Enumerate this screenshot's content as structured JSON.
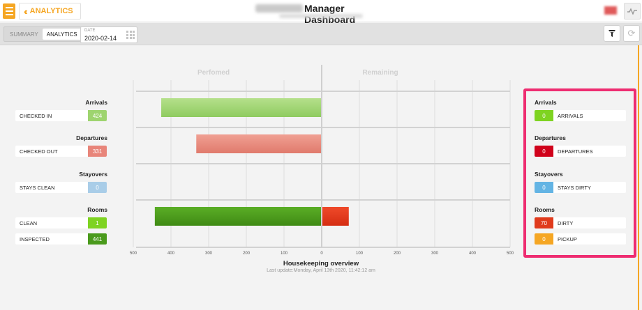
{
  "header": {
    "back_label": "ANALYTICS",
    "title": "Manager Dashboard"
  },
  "subbar": {
    "tabs": [
      {
        "label": "SUMMARY",
        "active": false
      },
      {
        "label": "ANALYTICS",
        "active": true
      }
    ],
    "date_label": "DATE",
    "date_value": "2020-02-14"
  },
  "left": {
    "arrivals_head": "Arrivals",
    "checked_in": {
      "label": "CHECKED IN",
      "value": "424"
    },
    "departures_head": "Departures",
    "checked_out": {
      "label": "CHECKED OUT",
      "value": "331"
    },
    "stayovers_head": "Stayovers",
    "stays_clean": {
      "label": "STAYS CLEAN",
      "value": "0"
    },
    "rooms_head": "Rooms",
    "clean": {
      "label": "CLEAN",
      "value": "1"
    },
    "inspected": {
      "label": "INSPECTED",
      "value": "441"
    }
  },
  "right": {
    "arrivals_head": "Arrivals",
    "arrivals": {
      "label": "ARRIVALS",
      "value": "0"
    },
    "departures_head": "Departures",
    "departures": {
      "label": "DEPARTURES",
      "value": "0"
    },
    "stayovers_head": "Stayovers",
    "stays_dirty": {
      "label": "STAYS DIRTY",
      "value": "0"
    },
    "rooms_head": "Rooms",
    "dirty": {
      "label": "DIRTY",
      "value": "70"
    },
    "pickup": {
      "label": "PICKUP",
      "value": "0"
    }
  },
  "colors": {
    "green_light": "#9ed46f",
    "red_light": "#e8857a",
    "green_dark": "#4a9a1c",
    "red_dark": "#e03a1c",
    "blue_light": "#a9cde8",
    "green_bright": "#7ed321",
    "red_bright": "#d0021b",
    "blue_bright": "#63b4e4",
    "orange": "#f5a623",
    "highlight": "#ee2d71"
  },
  "chart_data": {
    "type": "bar",
    "title": "Housekeeping overview",
    "subtitle": "Last update:Monday, April 13th 2020, 11:42:12 am",
    "column_labels": [
      "Perfomed",
      "Remaining"
    ],
    "categories": [
      "Arrivals",
      "Departures",
      "Stayovers",
      "Rooms"
    ],
    "series": [
      {
        "name": "Perfomed",
        "values": [
          424,
          331,
          0,
          441
        ]
      },
      {
        "name": "Remaining",
        "values": [
          0,
          0,
          0,
          70
        ]
      }
    ],
    "xlim": [
      -500,
      500
    ],
    "x_ticks": [
      -500,
      -400,
      -300,
      -200,
      -100,
      0,
      100,
      200,
      300,
      400,
      500
    ],
    "x_tick_labels": [
      "500",
      "400",
      "300",
      "200",
      "100",
      "0",
      "100",
      "200",
      "300",
      "400",
      "500"
    ],
    "grid": true
  }
}
